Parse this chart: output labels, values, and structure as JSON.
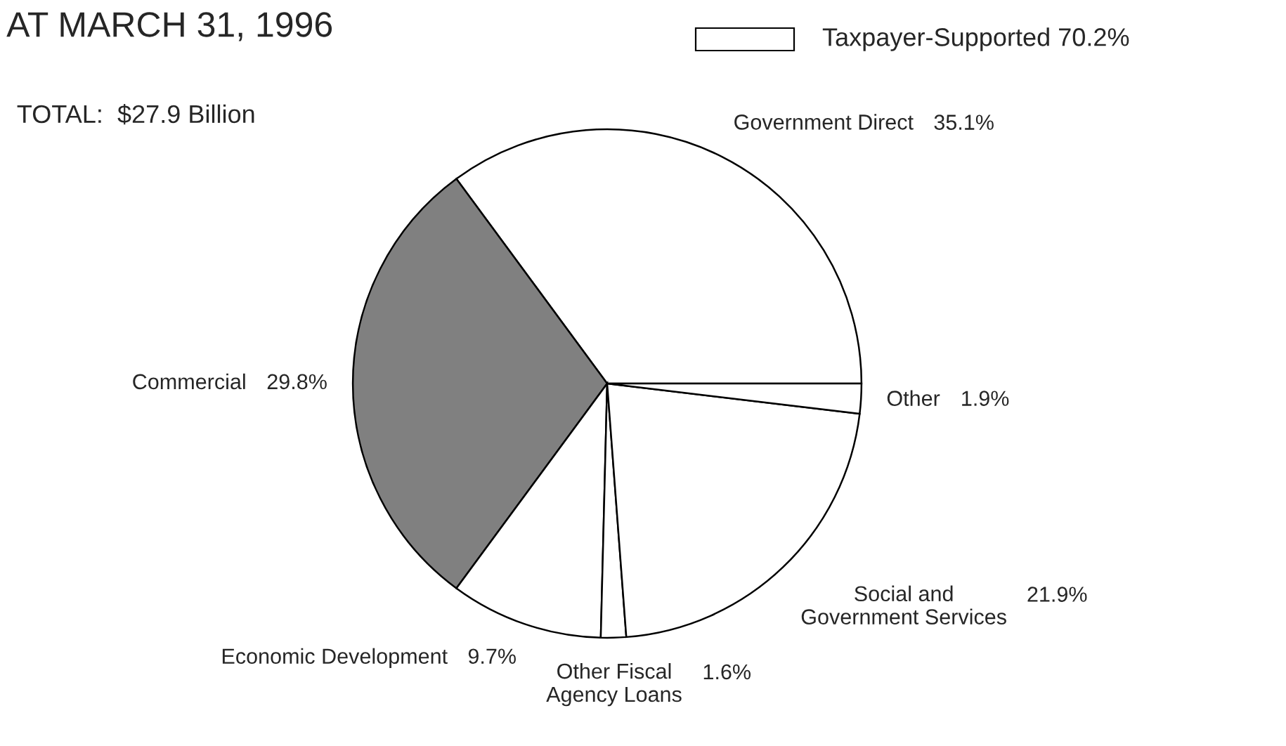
{
  "chart_data": {
    "type": "pie",
    "title": "AT MARCH 31, 1996",
    "categories": [
      "Government Direct",
      "Commercial",
      "Economic Development",
      "Other Fiscal\nAgency Loans",
      "Social and\nGovernment Services",
      "Other"
    ],
    "values": [
      35.1,
      29.8,
      9.7,
      1.6,
      21.9,
      1.9
    ],
    "value_labels": [
      "35.1%",
      "29.8%",
      "9.7%",
      "1.6%",
      "21.9%",
      "1.9%"
    ],
    "colors": [
      "#ffffff",
      "#808080",
      "#ffffff",
      "#ffffff",
      "#ffffff",
      "#ffffff"
    ],
    "legend_title": "Taxpayer-Supported 70.2%",
    "annotations": [
      "TOTAL:  $27.9 Billion"
    ]
  }
}
